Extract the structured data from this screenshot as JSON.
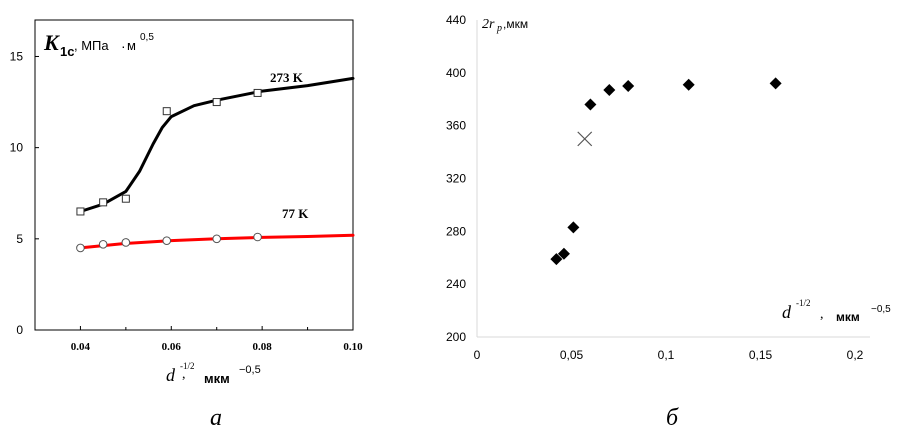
{
  "chart_data": [
    {
      "type": "line",
      "panel_caption": "а",
      "ylabel": "K",
      "ylabel_sub": "1c",
      "ylabel_units": ", МПа",
      "ylabel_units_dot": "·",
      "ylabel_units_m": "м",
      "ylabel_exp": "0,5",
      "xlabel": "d",
      "xlabel_exp": "-1/2",
      "xlabel_sep": ",",
      "xlabel_units": "мкм",
      "xlabel_units_exp": "−0,5",
      "xlim": [
        0.03,
        0.1
      ],
      "ylim": [
        0,
        17
      ],
      "x_ticks": [
        "0.04",
        "0.06",
        "0.08",
        "0.10"
      ],
      "y_ticks": [
        "0",
        "5",
        "10",
        "15"
      ],
      "series": [
        {
          "name": "273 K",
          "color": "#000000",
          "marker": "square",
          "x": [
            0.04,
            0.045,
            0.05,
            0.059,
            0.07,
            0.079
          ],
          "y": [
            6.5,
            7.0,
            7.2,
            12.0,
            12.5,
            13.0
          ],
          "curve_x": [
            0.04,
            0.045,
            0.05,
            0.053,
            0.056,
            0.058,
            0.06,
            0.065,
            0.07,
            0.08,
            0.09,
            0.1
          ],
          "curve_y": [
            6.5,
            6.9,
            7.6,
            8.7,
            10.2,
            11.1,
            11.7,
            12.3,
            12.6,
            13.1,
            13.4,
            13.8
          ]
        },
        {
          "name": "77 K",
          "color": "#ff0000",
          "marker": "circle",
          "x": [
            0.04,
            0.045,
            0.05,
            0.059,
            0.07,
            0.079
          ],
          "y": [
            4.5,
            4.7,
            4.8,
            4.9,
            5.0,
            5.1
          ],
          "curve_x": [
            0.04,
            0.05,
            0.06,
            0.07,
            0.08,
            0.09,
            0.1
          ],
          "curve_y": [
            4.5,
            4.75,
            4.9,
            5.0,
            5.08,
            5.13,
            5.2
          ]
        }
      ]
    },
    {
      "type": "scatter",
      "panel_caption": "б",
      "ylabel": "2r",
      "ylabel_sub": "p",
      "ylabel_units": ",мкм",
      "xlabel": "d",
      "xlabel_exp": "-1/2",
      "xlabel_sep": ",",
      "xlabel_units": "мкм",
      "xlabel_units_exp": "−0,5",
      "xlim": [
        0,
        0.2
      ],
      "ylim": [
        200,
        440
      ],
      "x_ticks": [
        "0",
        "0,05",
        "0,1",
        "0,15",
        "0,2"
      ],
      "y_ticks": [
        "200",
        "240",
        "280",
        "320",
        "360",
        "400",
        "440"
      ],
      "series": [
        {
          "marker": "diamond",
          "color": "#000000",
          "x": [
            0.042,
            0.046,
            0.051,
            0.06,
            0.07,
            0.08,
            0.112,
            0.158
          ],
          "y": [
            259,
            263,
            283,
            376,
            387,
            390,
            391,
            392
          ]
        },
        {
          "marker": "x",
          "color": "#555555",
          "x": [
            0.057
          ],
          "y": [
            350
          ]
        }
      ]
    }
  ]
}
